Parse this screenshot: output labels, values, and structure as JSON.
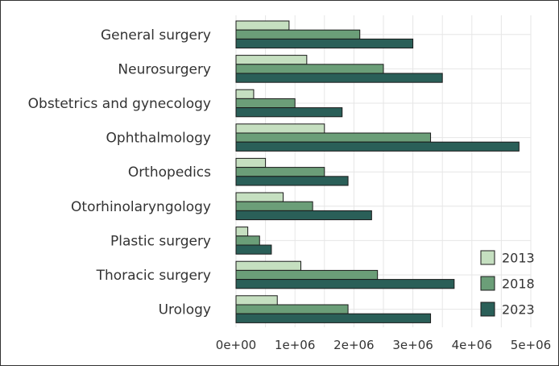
{
  "chart_data": {
    "type": "bar",
    "orientation": "horizontal",
    "categories": [
      "General surgery",
      "Neurosurgery",
      "Obstetrics and gynecology",
      "Ophthalmology",
      "Orthopedics",
      "Otorhinolaryngology",
      "Plastic surgery",
      "Thoracic surgery",
      "Urology"
    ],
    "series": [
      {
        "name": "2013",
        "color": "#c5dfc0",
        "values": [
          900000,
          1200000,
          300000,
          1500000,
          500000,
          800000,
          200000,
          1100000,
          700000
        ]
      },
      {
        "name": "2018",
        "color": "#6b9e78",
        "values": [
          2100000,
          2500000,
          1000000,
          3300000,
          1500000,
          1300000,
          400000,
          2400000,
          1900000
        ]
      },
      {
        "name": "2023",
        "color": "#2a5f58",
        "values": [
          3000000,
          3500000,
          1800000,
          4800000,
          1900000,
          2300000,
          600000,
          3700000,
          3300000
        ]
      }
    ],
    "xticks": [
      0,
      1000000,
      2000000,
      3000000,
      4000000,
      5000000
    ],
    "xtick_labels": [
      "0e+00",
      "1e+06",
      "2e+06",
      "3e+06",
      "4e+06",
      "5e+06"
    ],
    "xlim": [
      0,
      5000000
    ],
    "title": "",
    "xlabel": "",
    "ylabel": "",
    "grid": true,
    "legend_position": "bottom-right"
  }
}
